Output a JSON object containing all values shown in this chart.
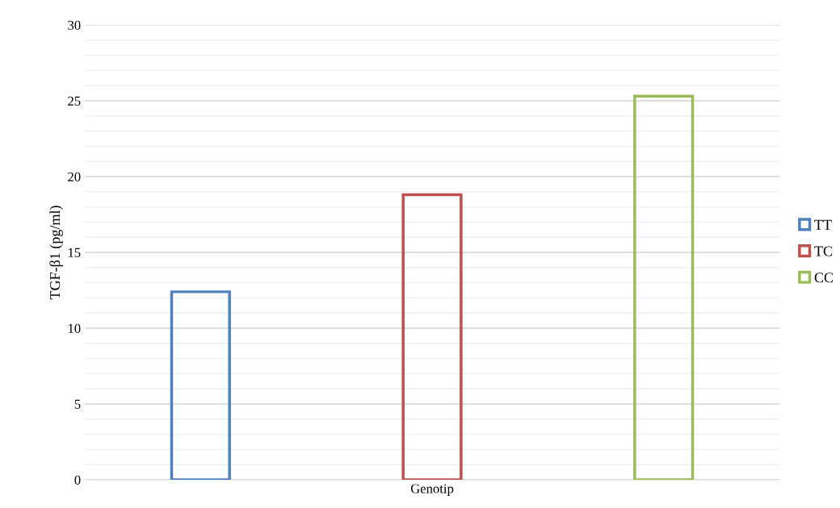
{
  "chart_data": {
    "type": "bar",
    "ylabel": "TGF-β1 (pg/ml)",
    "categories": [
      "Genotip"
    ],
    "series": [
      {
        "name": "TT",
        "color": "#4f81bd",
        "values": [
          12.4
        ]
      },
      {
        "name": "TC",
        "color": "#c0504d",
        "values": [
          18.8
        ]
      },
      {
        "name": "CC",
        "color": "#9bbb59",
        "values": [
          25.3
        ]
      }
    ],
    "ylim": [
      0,
      30
    ],
    "yticks": [
      0,
      5,
      10,
      15,
      20,
      25,
      30
    ],
    "grid": "y",
    "legend": "right"
  }
}
